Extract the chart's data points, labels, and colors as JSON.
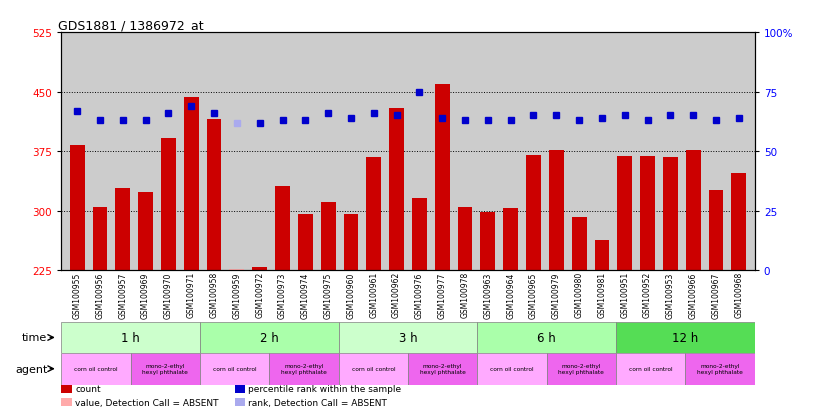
{
  "title": "GDS1881 / 1386972_at",
  "samples": [
    "GSM100955",
    "GSM100956",
    "GSM100957",
    "GSM100969",
    "GSM100970",
    "GSM100971",
    "GSM100958",
    "GSM100959",
    "GSM100972",
    "GSM100973",
    "GSM100974",
    "GSM100975",
    "GSM100960",
    "GSM100961",
    "GSM100962",
    "GSM100976",
    "GSM100977",
    "GSM100978",
    "GSM100963",
    "GSM100964",
    "GSM100965",
    "GSM100979",
    "GSM100980",
    "GSM100981",
    "GSM100951",
    "GSM100952",
    "GSM100953",
    "GSM100966",
    "GSM100967",
    "GSM100968"
  ],
  "count_values": [
    383,
    304,
    329,
    323,
    392,
    443,
    415,
    227,
    229,
    331,
    296,
    311,
    296,
    368,
    430,
    316,
    459,
    304,
    298,
    303,
    370,
    376,
    292,
    263,
    369,
    369,
    368,
    376,
    326,
    348
  ],
  "absent_count": [
    false,
    false,
    false,
    false,
    false,
    false,
    false,
    true,
    false,
    false,
    false,
    false,
    false,
    false,
    false,
    false,
    false,
    false,
    false,
    false,
    false,
    false,
    false,
    false,
    false,
    false,
    false,
    false,
    false,
    false
  ],
  "percentile_values": [
    67,
    63,
    63,
    63,
    66,
    69,
    66,
    62,
    62,
    63,
    63,
    66,
    64,
    66,
    65,
    75,
    64,
    63,
    63,
    63,
    65,
    65,
    63,
    64,
    65,
    63,
    65,
    65,
    63,
    64
  ],
  "absent_percentile": [
    false,
    false,
    false,
    false,
    false,
    false,
    false,
    true,
    false,
    false,
    false,
    false,
    false,
    false,
    false,
    false,
    false,
    false,
    false,
    false,
    false,
    false,
    false,
    false,
    false,
    false,
    false,
    false,
    false,
    false
  ],
  "time_groups": [
    {
      "label": "1 h",
      "start": 0,
      "end": 6
    },
    {
      "label": "2 h",
      "start": 6,
      "end": 12
    },
    {
      "label": "3 h",
      "start": 12,
      "end": 18
    },
    {
      "label": "6 h",
      "start": 18,
      "end": 24
    },
    {
      "label": "12 h",
      "start": 24,
      "end": 30
    }
  ],
  "time_colors": [
    "#ccffcc",
    "#aaffaa",
    "#ccffcc",
    "#aaffaa",
    "#66ee66"
  ],
  "agent_groups": [
    {
      "label": "corn oil control",
      "start": 0,
      "end": 3
    },
    {
      "label": "mono-2-ethyl\nhexyl phthalate",
      "start": 3,
      "end": 6
    },
    {
      "label": "corn oil control",
      "start": 6,
      "end": 9
    },
    {
      "label": "mono-2-ethyl\nhexyl phthalate",
      "start": 9,
      "end": 12
    },
    {
      "label": "corn oil control",
      "start": 12,
      "end": 15
    },
    {
      "label": "mono-2-ethyl\nhexyl phthalate",
      "start": 15,
      "end": 18
    },
    {
      "label": "corn oil control",
      "start": 18,
      "end": 21
    },
    {
      "label": "mono-2-ethyl\nhexyl phthalate",
      "start": 21,
      "end": 24
    },
    {
      "label": "corn oil control",
      "start": 24,
      "end": 27
    },
    {
      "label": "mono-2-ethyl\nhexyl phthalate",
      "start": 27,
      "end": 30
    }
  ],
  "agent_colors": [
    "#ffaaff",
    "#ee66ee"
  ],
  "ylim_left": [
    225,
    525
  ],
  "ylim_right": [
    0,
    100
  ],
  "yticks_left": [
    225,
    300,
    375,
    450,
    525
  ],
  "yticks_right": [
    0,
    25,
    50,
    75,
    100
  ],
  "bar_color": "#cc0000",
  "absent_bar_color": "#ffaaaa",
  "dot_color": "#0000cc",
  "absent_dot_color": "#aaaaee",
  "bg_color": "#cccccc",
  "time_row_color_light": "#ccffcc",
  "time_row_color_dark": "#66ee66",
  "legend_items": [
    {
      "label": "count",
      "color": "#cc0000"
    },
    {
      "label": "percentile rank within the sample",
      "color": "#0000cc"
    },
    {
      "label": "value, Detection Call = ABSENT",
      "color": "#ffaaaa"
    },
    {
      "label": "rank, Detection Call = ABSENT",
      "color": "#aaaaee"
    }
  ]
}
